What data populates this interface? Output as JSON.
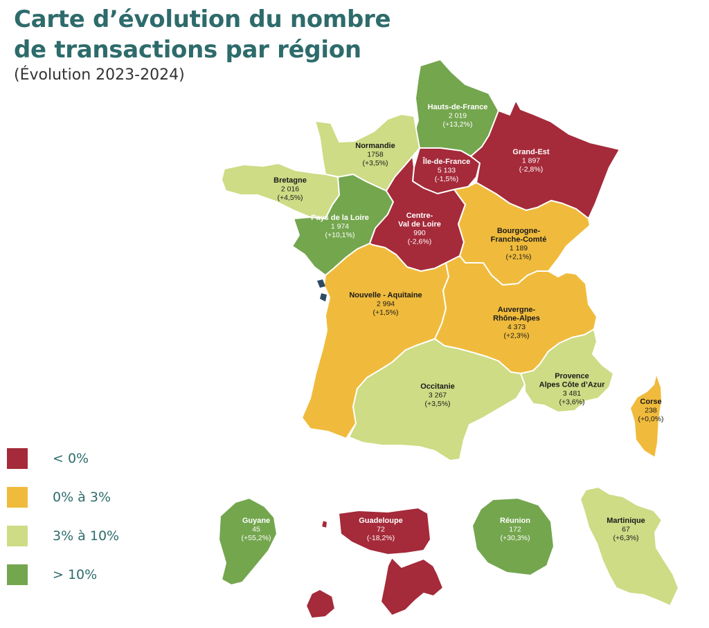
{
  "title": {
    "line1": "Carte d’évolution du nombre",
    "line2": "de transactions par région",
    "subtitle": "(Évolution  2023-2024)"
  },
  "colors": {
    "neg": "#a52a3a",
    "low": "#f0bb3c",
    "mid": "#cddc85",
    "high": "#74a64e"
  },
  "legend": [
    {
      "label": "< 0%",
      "color_key": "neg"
    },
    {
      "label": "0% à 3%",
      "color_key": "low"
    },
    {
      "label": "3% à 10%",
      "color_key": "mid"
    },
    {
      "label": "> 10%",
      "color_key": "high"
    }
  ],
  "regions": [
    {
      "id": "hauts-de-france",
      "name": [
        "Hauts-de-France"
      ],
      "transactions": "2 019",
      "change": "(+13,2%)",
      "category": "high"
    },
    {
      "id": "normandie",
      "name": [
        "Normandie"
      ],
      "transactions": "1758",
      "change": "(+3,5%)",
      "category": "mid"
    },
    {
      "id": "ile-de-france",
      "name": [
        "Île-de-France"
      ],
      "transactions": "5 133",
      "change": "(-1,5%)",
      "category": "neg"
    },
    {
      "id": "grand-est",
      "name": [
        "Grand-Est"
      ],
      "transactions": "1 897",
      "change": "(-2,8%)",
      "category": "neg"
    },
    {
      "id": "bretagne",
      "name": [
        "Bretagne"
      ],
      "transactions": "2 016",
      "change": "(+4,5%)",
      "category": "mid"
    },
    {
      "id": "pays-de-la-loire",
      "name": [
        "Pays de la Loire"
      ],
      "transactions": "1 974",
      "change": "(+10,1%)",
      "category": "high"
    },
    {
      "id": "centre-val-de-loire",
      "name": [
        "Centre-",
        "Val de Loire"
      ],
      "transactions": "990",
      "change": "(-2,6%)",
      "category": "neg"
    },
    {
      "id": "bourgogne-franche-comte",
      "name": [
        "Bourgogne-",
        "Franche-Comté"
      ],
      "transactions": "1 189",
      "change": "(+2,1%)",
      "category": "low"
    },
    {
      "id": "nouvelle-aquitaine",
      "name": [
        "Nouvelle - Aquitaine"
      ],
      "transactions": "2 994",
      "change": "(+1,5%)",
      "category": "low"
    },
    {
      "id": "auvergne-rhone-alpes",
      "name": [
        "Auvergne-",
        "Rhône-Alpes"
      ],
      "transactions": "4 373",
      "change": "(+2,3%)",
      "category": "low"
    },
    {
      "id": "occitanie",
      "name": [
        "Occitanie"
      ],
      "transactions": "3 267",
      "change": "(+3,5%)",
      "category": "mid"
    },
    {
      "id": "paca",
      "name": [
        "Provence",
        "Alpes Côte d’Azur"
      ],
      "transactions": "3 481",
      "change": "(+3,6%)",
      "category": "mid"
    },
    {
      "id": "corse",
      "name": [
        "Corse"
      ],
      "transactions": "238",
      "change": "(+0,0%)",
      "category": "low"
    },
    {
      "id": "guyane",
      "name": [
        "Guyane"
      ],
      "transactions": "45",
      "change": "(+55,2%)",
      "category": "high"
    },
    {
      "id": "guadeloupe",
      "name": [
        "Guadeloupe"
      ],
      "transactions": "72",
      "change": "(-18,2%)",
      "category": "neg"
    },
    {
      "id": "reunion",
      "name": [
        "Réunion"
      ],
      "transactions": "172",
      "change": "(+30,3%)",
      "category": "high"
    },
    {
      "id": "martinique",
      "name": [
        "Martinique"
      ],
      "transactions": "67",
      "change": "(+6,3%)",
      "category": "mid"
    }
  ]
}
